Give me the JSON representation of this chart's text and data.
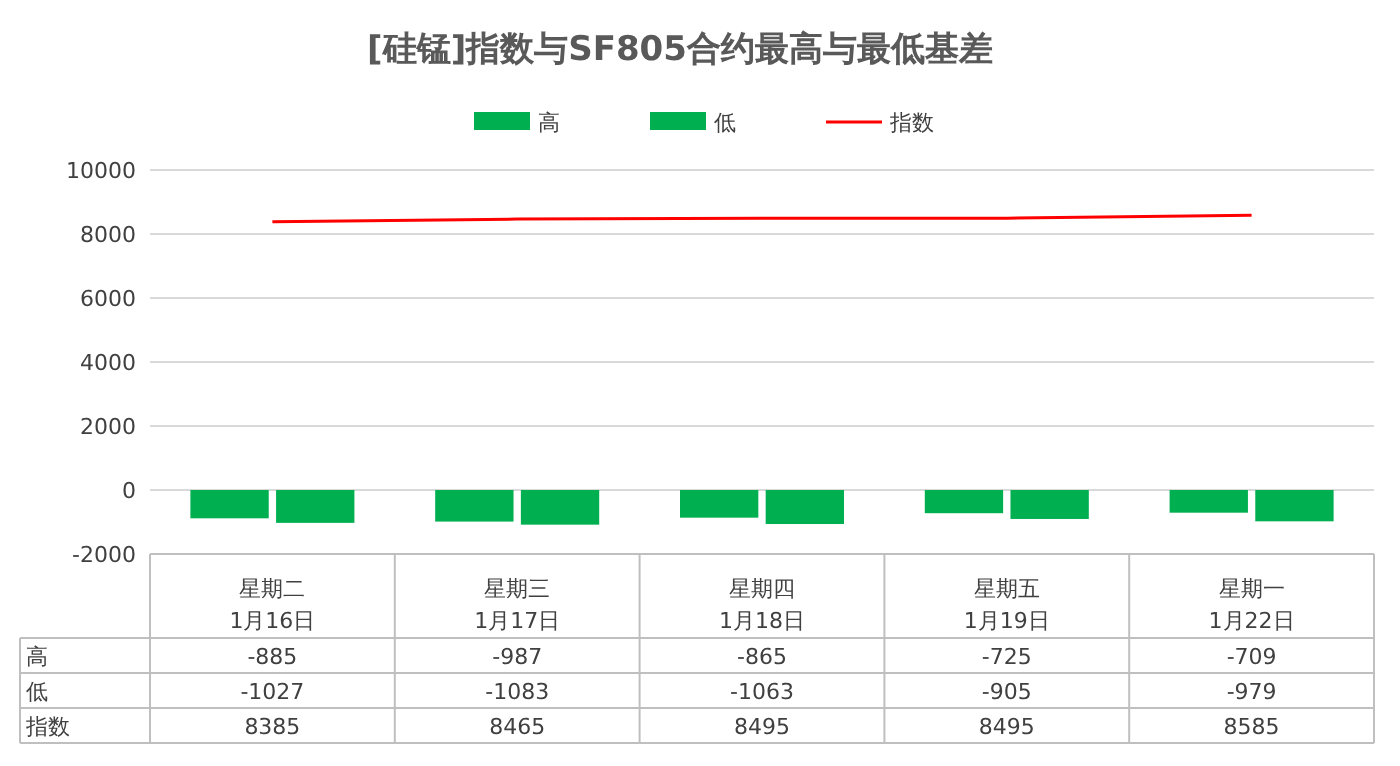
{
  "chart_data": {
    "type": "bar",
    "title": "[硅锰]指数与SF805合约最高与最低基差",
    "categories": [
      "星期二 1月16日",
      "星期三 1月17日",
      "星期四 1月18日",
      "星期五 1月19日",
      "星期一 1月22日"
    ],
    "series": [
      {
        "name": "高",
        "color": "#00b050",
        "values": [
          -885,
          -987,
          -865,
          -725,
          -709
        ]
      },
      {
        "name": "低",
        "color": "#00b050",
        "values": [
          -1027,
          -1083,
          -1063,
          -905,
          -979
        ]
      },
      {
        "name": "指数",
        "type": "line",
        "color": "#ff0000",
        "values": [
          8385,
          8465,
          8495,
          8495,
          8585
        ]
      }
    ],
    "ylim": [
      -2000,
      10000
    ],
    "yticks": [
      -2000,
      0,
      2000,
      4000,
      6000,
      8000,
      10000
    ],
    "grid": "y",
    "legend": "top",
    "data_labels": true
  }
}
